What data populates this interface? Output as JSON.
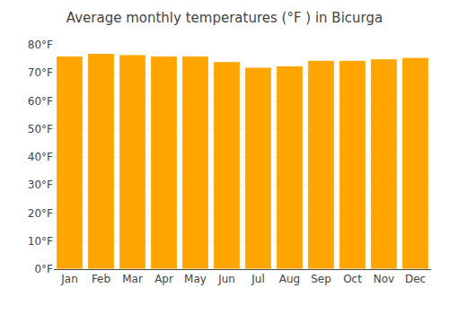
{
  "chart_data": {
    "type": "bar",
    "title": "Average monthly temperatures (°F ) in Bicurga",
    "categories": [
      "Jan",
      "Feb",
      "Mar",
      "Apr",
      "May",
      "Jun",
      "Jul",
      "Aug",
      "Sep",
      "Oct",
      "Nov",
      "Dec"
    ],
    "values": [
      76.0,
      77.0,
      76.5,
      76.0,
      76.0,
      74.0,
      72.0,
      72.5,
      74.5,
      74.5,
      75.0,
      75.5
    ],
    "color": "#FFA500",
    "ylim": [
      0,
      80
    ],
    "yticks": [
      {
        "value": 0,
        "label": "0°F"
      },
      {
        "value": 10,
        "label": "10°F"
      },
      {
        "value": 20,
        "label": "20°F"
      },
      {
        "value": 30,
        "label": "30°F"
      },
      {
        "value": 40,
        "label": "40°F"
      },
      {
        "value": 50,
        "label": "50°F"
      },
      {
        "value": 60,
        "label": "60°F"
      },
      {
        "value": 70,
        "label": "70°F"
      },
      {
        "value": 80,
        "label": "80°F"
      }
    ],
    "grid": true
  }
}
